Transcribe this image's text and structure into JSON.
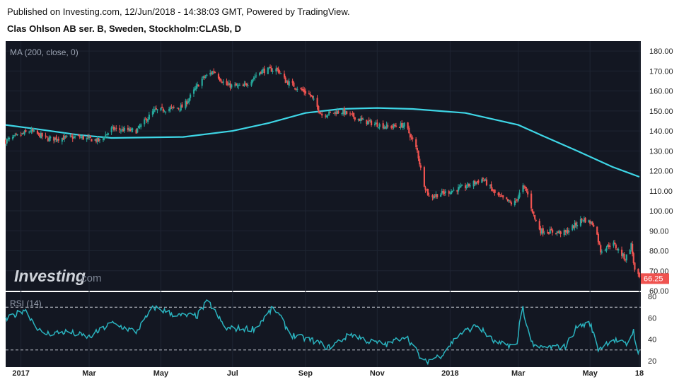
{
  "header": {
    "published": "Published on Investing.com, 12/Jun/2018 - 14:38:03 GMT, Powered by TradingView.",
    "instrument": "Clas Ohlson AB ser. B, Sweden, Stockholm:CLASb, D"
  },
  "watermark": {
    "brand": "Investing",
    "suffix": ".com"
  },
  "colors": {
    "background": "#131722",
    "up": "#26a69a",
    "down": "#ef5350",
    "ma": "#3ed6e6",
    "rsi": "#2ab3bf",
    "last_price_bg": "#ef5350"
  },
  "chart_data": [
    {
      "type": "candlestick",
      "indicator_label": "MA (200, close, 0)",
      "ylim": [
        60,
        185
      ],
      "yticks": [
        "180.00",
        "170.00",
        "160.00",
        "150.00",
        "140.00",
        "130.00",
        "120.00",
        "110.00",
        "100.00",
        "90.00",
        "80.00",
        "70.00",
        "60.00"
      ],
      "ytick_values": [
        180,
        170,
        160,
        150,
        140,
        130,
        120,
        110,
        100,
        90,
        80,
        70,
        60
      ],
      "last_price": "66.25",
      "last_price_value": 66.25,
      "xticks": [
        "2017",
        "Mar",
        "May",
        "Jul",
        "Sep",
        "Nov",
        "2018",
        "Mar",
        "May",
        "18"
      ],
      "xtick_dates": [
        "2017-01-02",
        "2017-03-01",
        "2017-05-01",
        "2017-07-01",
        "2017-09-01",
        "2017-11-01",
        "2018-01-02",
        "2018-03-01",
        "2018-05-01",
        "2018-06-12"
      ],
      "close_anchors": [
        {
          "date": "2016-12-20",
          "close": 135
        },
        {
          "date": "2017-01-10",
          "close": 140
        },
        {
          "date": "2017-01-25",
          "close": 136
        },
        {
          "date": "2017-02-20",
          "close": 137
        },
        {
          "date": "2017-03-10",
          "close": 135
        },
        {
          "date": "2017-03-20",
          "close": 141
        },
        {
          "date": "2017-04-10",
          "close": 140
        },
        {
          "date": "2017-04-25",
          "close": 150
        },
        {
          "date": "2017-05-20",
          "close": 152
        },
        {
          "date": "2017-06-05",
          "close": 166
        },
        {
          "date": "2017-06-15",
          "close": 170
        },
        {
          "date": "2017-06-25",
          "close": 163
        },
        {
          "date": "2017-07-10",
          "close": 162
        },
        {
          "date": "2017-07-25",
          "close": 170
        },
        {
          "date": "2017-08-08",
          "close": 171
        },
        {
          "date": "2017-08-15",
          "close": 165
        },
        {
          "date": "2017-09-05",
          "close": 158
        },
        {
          "date": "2017-09-15",
          "close": 148
        },
        {
          "date": "2017-10-01",
          "close": 150
        },
        {
          "date": "2017-10-20",
          "close": 145
        },
        {
          "date": "2017-11-10",
          "close": 142
        },
        {
          "date": "2017-11-25",
          "close": 143
        },
        {
          "date": "2017-12-05",
          "close": 130
        },
        {
          "date": "2017-12-10",
          "close": 115
        },
        {
          "date": "2017-12-15",
          "close": 107
        },
        {
          "date": "2017-12-28",
          "close": 109
        },
        {
          "date": "2018-01-15",
          "close": 112
        },
        {
          "date": "2018-01-30",
          "close": 116
        },
        {
          "date": "2018-02-10",
          "close": 108
        },
        {
          "date": "2018-02-25",
          "close": 103
        },
        {
          "date": "2018-03-05",
          "close": 112
        },
        {
          "date": "2018-03-08",
          "close": 110
        },
        {
          "date": "2018-03-15",
          "close": 96
        },
        {
          "date": "2018-03-20",
          "close": 90
        },
        {
          "date": "2018-04-10",
          "close": 89
        },
        {
          "date": "2018-04-25",
          "close": 96
        },
        {
          "date": "2018-05-05",
          "close": 93
        },
        {
          "date": "2018-05-10",
          "close": 80
        },
        {
          "date": "2018-05-20",
          "close": 84
        },
        {
          "date": "2018-05-31",
          "close": 76
        },
        {
          "date": "2018-06-05",
          "close": 83
        },
        {
          "date": "2018-06-08",
          "close": 70
        },
        {
          "date": "2018-06-12",
          "close": 66.25
        }
      ],
      "ma200_anchors": [
        {
          "date": "2016-12-20",
          "value": 143
        },
        {
          "date": "2017-01-15",
          "value": 141
        },
        {
          "date": "2017-02-20",
          "value": 138
        },
        {
          "date": "2017-03-20",
          "value": 136.5
        },
        {
          "date": "2017-05-20",
          "value": 137
        },
        {
          "date": "2017-07-01",
          "value": 140
        },
        {
          "date": "2017-08-01",
          "value": 144
        },
        {
          "date": "2017-09-01",
          "value": 149
        },
        {
          "date": "2017-10-01",
          "value": 151
        },
        {
          "date": "2017-11-01",
          "value": 151.5
        },
        {
          "date": "2017-12-01",
          "value": 151
        },
        {
          "date": "2018-01-15",
          "value": 149
        },
        {
          "date": "2018-03-01",
          "value": 143
        },
        {
          "date": "2018-03-20",
          "value": 138
        },
        {
          "date": "2018-04-20",
          "value": 130
        },
        {
          "date": "2018-05-20",
          "value": 122
        },
        {
          "date": "2018-06-12",
          "value": 117
        }
      ]
    },
    {
      "type": "line",
      "indicator_label": "RSI (14)",
      "ylim": [
        14,
        84
      ],
      "yticks": [
        "80",
        "60",
        "40",
        "20"
      ],
      "ytick_values": [
        80,
        60,
        40,
        20
      ],
      "reference_levels": [
        70,
        30
      ],
      "anchors": [
        {
          "date": "2016-12-20",
          "value": 58
        },
        {
          "date": "2017-01-05",
          "value": 68
        },
        {
          "date": "2017-01-20",
          "value": 45
        },
        {
          "date": "2017-02-10",
          "value": 47
        },
        {
          "date": "2017-03-01",
          "value": 42
        },
        {
          "date": "2017-03-20",
          "value": 55
        },
        {
          "date": "2017-04-10",
          "value": 47
        },
        {
          "date": "2017-04-25",
          "value": 70
        },
        {
          "date": "2017-05-15",
          "value": 62
        },
        {
          "date": "2017-06-01",
          "value": 62
        },
        {
          "date": "2017-06-10",
          "value": 76
        },
        {
          "date": "2017-06-25",
          "value": 50
        },
        {
          "date": "2017-07-20",
          "value": 50
        },
        {
          "date": "2017-08-05",
          "value": 70
        },
        {
          "date": "2017-08-20",
          "value": 44
        },
        {
          "date": "2017-09-10",
          "value": 38
        },
        {
          "date": "2017-09-20",
          "value": 32
        },
        {
          "date": "2017-10-10",
          "value": 45
        },
        {
          "date": "2017-10-25",
          "value": 38
        },
        {
          "date": "2017-11-10",
          "value": 35
        },
        {
          "date": "2017-11-25",
          "value": 44
        },
        {
          "date": "2017-12-05",
          "value": 28
        },
        {
          "date": "2017-12-10",
          "value": 18
        },
        {
          "date": "2017-12-25",
          "value": 25
        },
        {
          "date": "2018-01-10",
          "value": 45
        },
        {
          "date": "2018-01-25",
          "value": 53
        },
        {
          "date": "2018-02-10",
          "value": 36
        },
        {
          "date": "2018-02-28",
          "value": 34
        },
        {
          "date": "2018-03-04",
          "value": 76
        },
        {
          "date": "2018-03-08",
          "value": 52
        },
        {
          "date": "2018-03-15",
          "value": 32
        },
        {
          "date": "2018-04-10",
          "value": 33
        },
        {
          "date": "2018-04-20",
          "value": 52
        },
        {
          "date": "2018-05-01",
          "value": 55
        },
        {
          "date": "2018-05-08",
          "value": 31
        },
        {
          "date": "2018-05-20",
          "value": 40
        },
        {
          "date": "2018-06-01",
          "value": 35
        },
        {
          "date": "2018-06-07",
          "value": 48
        },
        {
          "date": "2018-06-10",
          "value": 30
        },
        {
          "date": "2018-06-12",
          "value": 28
        }
      ]
    }
  ]
}
